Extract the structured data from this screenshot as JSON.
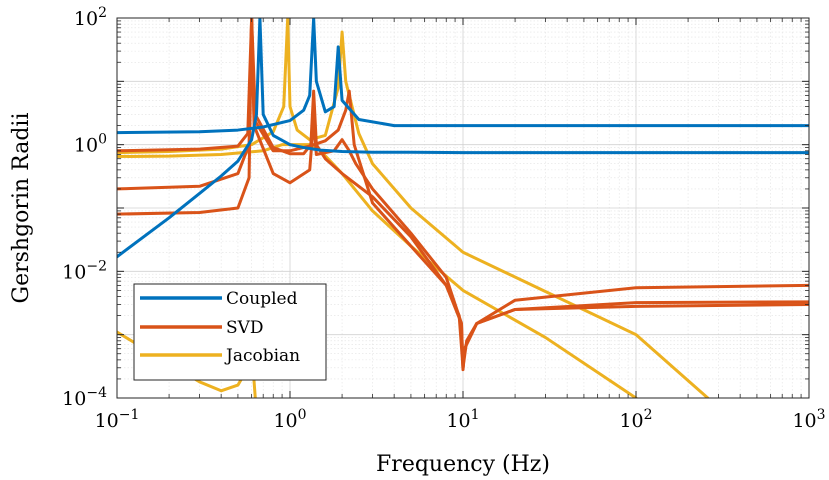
{
  "chart_data": {
    "type": "line",
    "xlabel": "Frequency (Hz)",
    "ylabel": "Gershgorin Radii",
    "x_scale": "log",
    "y_scale": "log",
    "xlim": [
      0.1,
      1000
    ],
    "ylim": [
      0.0001,
      100
    ],
    "grid": true,
    "minor_grid": true,
    "legend_position": "bottom-left",
    "x_ticks": [
      {
        "value": 0.1,
        "base": "10",
        "exp": "−1"
      },
      {
        "value": 1,
        "base": "10",
        "exp": "0"
      },
      {
        "value": 10,
        "base": "10",
        "exp": "1"
      },
      {
        "value": 100,
        "base": "10",
        "exp": "2"
      },
      {
        "value": 1000,
        "base": "10",
        "exp": "3"
      }
    ],
    "y_ticks": [
      {
        "value": 0.0001,
        "base": "10",
        "exp": "−4"
      },
      {
        "value": 0.01,
        "base": "10",
        "exp": "−2"
      },
      {
        "value": 1,
        "base": "10",
        "exp": "0"
      },
      {
        "value": 100,
        "base": "10",
        "exp": "2"
      }
    ],
    "groups": [
      {
        "name": "Coupled",
        "color": "#0072BD",
        "curves": [
          {
            "x": [
              0.1,
              0.2,
              0.3,
              0.4,
              0.5,
              0.6,
              0.64,
              0.67,
              0.7,
              0.8,
              1.0,
              1.2,
              1.5,
              2,
              3,
              5,
              10,
              100,
              1000
            ],
            "y": [
              0.017,
              0.07,
              0.17,
              0.32,
              0.55,
              1.2,
              3.0,
              100,
              3.0,
              1.4,
              1.0,
              0.9,
              0.82,
              0.78,
              0.76,
              0.76,
              0.75,
              0.75,
              0.75
            ]
          },
          {
            "x": [
              0.1,
              0.3,
              0.5,
              0.7,
              1.0,
              1.2,
              1.3,
              1.37,
              1.42,
              1.6,
              1.8,
              1.9,
              2.0,
              2.5,
              4,
              10,
              100,
              1000
            ],
            "y": [
              1.55,
              1.6,
              1.7,
              1.9,
              2.4,
              3.5,
              6,
              100,
              10,
              3.3,
              4,
              35,
              5,
              2.5,
              2.0,
              2.0,
              2.0,
              2.0
            ]
          }
        ]
      },
      {
        "name": "SVD",
        "color": "#D95319",
        "curves": [
          {
            "x": [
              0.1,
              0.3,
              0.5,
              0.57,
              0.6,
              0.63,
              0.8,
              1.0,
              1.2,
              1.32,
              1.37,
              1.42,
              1.6,
              2,
              3,
              5,
              8,
              9.5,
              10,
              10.5,
              12,
              20,
              100,
              1000
            ],
            "y": [
              0.8,
              0.85,
              0.95,
              1.5,
              100,
              3,
              0.9,
              0.72,
              0.72,
              1.0,
              7.0,
              1.0,
              0.6,
              0.35,
              0.15,
              0.035,
              0.006,
              0.002,
              0.0003,
              0.0008,
              0.0015,
              0.0025,
              0.0032,
              0.0033
            ]
          },
          {
            "x": [
              0.1,
              0.3,
              0.5,
              0.58,
              0.6,
              0.62,
              0.8,
              1.0,
              1.3,
              1.6,
              1.9,
              2.1,
              2.2,
              2.35,
              3,
              5,
              8,
              9.8,
              10,
              10.2,
              12,
              20,
              100,
              1000
            ],
            "y": [
              0.2,
              0.22,
              0.35,
              1.0,
              100,
              2.5,
              0.8,
              0.8,
              0.95,
              1.15,
              1.7,
              3.5,
              7.0,
              1.0,
              0.12,
              0.025,
              0.006,
              0.0015,
              0.00028,
              0.0006,
              0.0015,
              0.0035,
              0.0055,
              0.006
            ]
          },
          {
            "x": [
              0.1,
              0.3,
              0.5,
              0.58,
              0.6,
              0.62,
              0.8,
              1.0,
              1.3,
              1.37,
              1.42,
              1.8,
              2.0,
              2.2,
              2.4,
              3,
              5,
              8,
              9.8,
              10,
              10.2,
              12,
              20,
              100,
              1000
            ],
            "y": [
              0.08,
              0.085,
              0.1,
              0.3,
              100,
              2.0,
              0.35,
              0.25,
              0.4,
              2.5,
              0.7,
              0.8,
              1.2,
              0.8,
              0.5,
              0.2,
              0.04,
              0.008,
              0.0015,
              0.00029,
              0.0006,
              0.0015,
              0.0025,
              0.0028,
              0.003
            ]
          }
        ]
      },
      {
        "name": "Jacobian",
        "color": "#EDB120",
        "curves": [
          {
            "x": [
              0.1,
              0.2,
              0.4,
              0.6,
              0.8,
              0.92,
              0.97,
              1.0,
              1.1,
              1.3,
              1.6,
              1.9,
              2.0,
              2.1,
              2.5,
              3,
              5,
              10,
              100,
              260
            ],
            "y": [
              0.75,
              0.78,
              0.85,
              1.0,
              1.6,
              4.0,
              100,
              4.0,
              1.7,
              1.2,
              1.4,
              8.0,
              60,
              10,
              1.5,
              0.5,
              0.1,
              0.02,
              0.001,
              0.0001
            ]
          },
          {
            "x": [
              0.1,
              0.2,
              0.4,
              0.7,
              0.9,
              1.0,
              1.3,
              1.5,
              2.0,
              3,
              5,
              10,
              30,
              100
            ],
            "y": [
              0.65,
              0.66,
              0.7,
              0.8,
              1.0,
              1.0,
              1.0,
              0.8,
              0.35,
              0.09,
              0.025,
              0.005,
              0.0009,
              0.0001
            ]
          },
          {
            "x": [
              0.1,
              0.2,
              0.3,
              0.4,
              0.5,
              0.55,
              0.6,
              0.63
            ],
            "y": [
              0.0011,
              0.00035,
              0.00018,
              0.00013,
              0.00016,
              0.00025,
              0.0006,
              0.0001
            ]
          }
        ]
      }
    ]
  }
}
